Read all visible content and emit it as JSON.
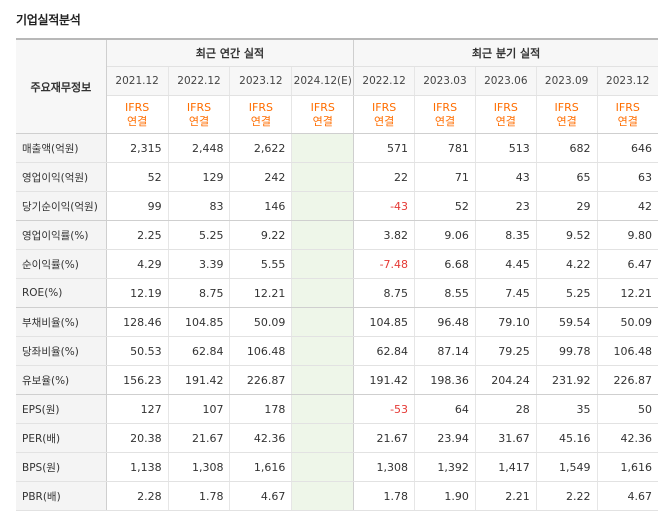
{
  "title": "기업실적분석",
  "header": {
    "row_label": "주요재무정보",
    "annual_group": "최근 연간 실적",
    "quarterly_group": "최근 분기 실적",
    "annual_periods": [
      "2021.12",
      "2022.12",
      "2023.12",
      "2024.12(E)"
    ],
    "quarterly_periods": [
      "2022.12",
      "2023.03",
      "2023.06",
      "2023.09",
      "2023.12"
    ],
    "ifrs_top": "IFRS",
    "ifrs_bottom": "연결"
  },
  "rows": [
    {
      "label": "매출액(억원)",
      "annual": [
        "2,315",
        "2,448",
        "2,622",
        ""
      ],
      "quarterly": [
        "571",
        "781",
        "513",
        "682",
        "646"
      ]
    },
    {
      "label": "영업이익(억원)",
      "annual": [
        "52",
        "129",
        "242",
        ""
      ],
      "quarterly": [
        "22",
        "71",
        "43",
        "65",
        "63"
      ]
    },
    {
      "label": "당기순이익(억원)",
      "annual": [
        "99",
        "83",
        "146",
        ""
      ],
      "quarterly": [
        "-43",
        "52",
        "23",
        "29",
        "42"
      ]
    },
    {
      "label": "영업이익률(%)",
      "annual": [
        "2.25",
        "5.25",
        "9.22",
        ""
      ],
      "quarterly": [
        "3.82",
        "9.06",
        "8.35",
        "9.52",
        "9.80"
      ]
    },
    {
      "label": "순이익률(%)",
      "annual": [
        "4.29",
        "3.39",
        "5.55",
        ""
      ],
      "quarterly": [
        "-7.48",
        "6.68",
        "4.45",
        "4.22",
        "6.47"
      ]
    },
    {
      "label": "ROE(%)",
      "annual": [
        "12.19",
        "8.75",
        "12.21",
        ""
      ],
      "quarterly": [
        "8.75",
        "8.55",
        "7.45",
        "5.25",
        "12.21"
      ]
    },
    {
      "label": "부채비율(%)",
      "annual": [
        "128.46",
        "104.85",
        "50.09",
        ""
      ],
      "quarterly": [
        "104.85",
        "96.48",
        "79.10",
        "59.54",
        "50.09"
      ]
    },
    {
      "label": "당좌비율(%)",
      "annual": [
        "50.53",
        "62.84",
        "106.48",
        ""
      ],
      "quarterly": [
        "62.84",
        "87.14",
        "79.25",
        "99.78",
        "106.48"
      ]
    },
    {
      "label": "유보율(%)",
      "annual": [
        "156.23",
        "191.42",
        "226.87",
        ""
      ],
      "quarterly": [
        "191.42",
        "198.36",
        "204.24",
        "231.92",
        "226.87"
      ]
    },
    {
      "label": "EPS(원)",
      "annual": [
        "127",
        "107",
        "178",
        ""
      ],
      "quarterly": [
        "-53",
        "64",
        "28",
        "35",
        "50"
      ]
    },
    {
      "label": "PER(배)",
      "annual": [
        "20.38",
        "21.67",
        "42.36",
        ""
      ],
      "quarterly": [
        "21.67",
        "23.94",
        "31.67",
        "45.16",
        "42.36"
      ]
    },
    {
      "label": "BPS(원)",
      "annual": [
        "1,138",
        "1,308",
        "1,616",
        ""
      ],
      "quarterly": [
        "1,308",
        "1,392",
        "1,417",
        "1,549",
        "1,616"
      ]
    },
    {
      "label": "PBR(배)",
      "annual": [
        "2.28",
        "1.78",
        "4.67",
        ""
      ],
      "quarterly": [
        "1.78",
        "1.90",
        "2.21",
        "2.22",
        "4.67"
      ]
    }
  ],
  "colors": {
    "ifrs": "#ff6d00",
    "negative": "#e53935",
    "estimate_bg": "#eef6e9"
  }
}
